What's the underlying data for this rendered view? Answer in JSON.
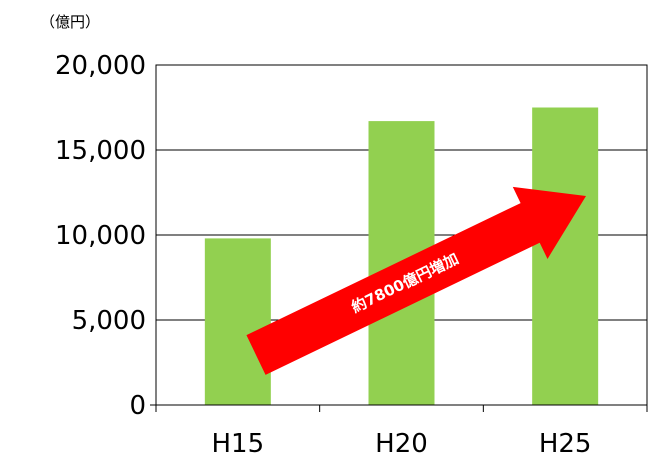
{
  "chart_data": {
    "type": "bar",
    "title": "",
    "unit_label": "（億円）",
    "xlabel": "",
    "ylabel": "",
    "categories": [
      "H15",
      "H20",
      "H25"
    ],
    "values": [
      9800,
      16700,
      17500
    ],
    "ylim": [
      0,
      20000
    ],
    "yticks": [
      0,
      5000,
      10000,
      15000,
      20000
    ],
    "ytick_labels": [
      "0",
      "5,000",
      "10,000",
      "15,000",
      "20,000"
    ],
    "grid": true,
    "legend": "none",
    "bar_color": "#92d050",
    "annotation": {
      "text": "約7800億円増加",
      "color": "#ff0000"
    }
  }
}
